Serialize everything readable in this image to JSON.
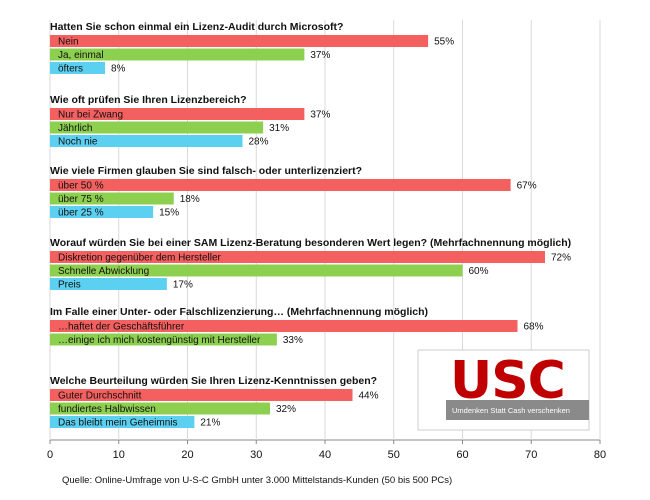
{
  "chart_data": {
    "type": "bar",
    "orientation": "horizontal",
    "xlim": [
      0,
      80
    ],
    "xticks": [
      "0",
      "10",
      "20",
      "30",
      "40",
      "50",
      "60",
      "70",
      "80"
    ],
    "grid": true,
    "colors": {
      "red": "#f45f5f",
      "green": "#8dd050",
      "blue": "#5bd0f0"
    },
    "groups": [
      {
        "question": "Hatten Sie schon einmal ein Lizenz-Audit durch Microsoft?",
        "bars": [
          {
            "label": "Nein",
            "value": 55,
            "pct": "55%",
            "color": "red"
          },
          {
            "label": "Ja, einmal",
            "value": 37,
            "pct": "37%",
            "color": "green"
          },
          {
            "label": "öfters",
            "value": 8,
            "pct": "8%",
            "color": "blue"
          }
        ]
      },
      {
        "question": "Wie oft prüfen Sie Ihren Lizenzbereich?",
        "bars": [
          {
            "label": "Nur bei Zwang",
            "value": 37,
            "pct": "37%",
            "color": "red"
          },
          {
            "label": "Jährlich",
            "value": 31,
            "pct": "31%",
            "color": "green"
          },
          {
            "label": "Noch nie",
            "value": 28,
            "pct": "28%",
            "color": "blue"
          }
        ]
      },
      {
        "question": "Wie viele Firmen glauben Sie sind falsch- oder unterlizenziert?",
        "bars": [
          {
            "label": "über 50 %",
            "value": 67,
            "pct": "67%",
            "color": "red"
          },
          {
            "label": "über 75 %",
            "value": 18,
            "pct": "18%",
            "color": "green"
          },
          {
            "label": "über 25 %",
            "value": 15,
            "pct": "15%",
            "color": "blue"
          }
        ]
      },
      {
        "question": "Worauf würden Sie bei einer SAM Lizenz-Beratung besonderen Wert legen? (Mehrfachnennung möglich)",
        "bars": [
          {
            "label": "Diskretion gegenüber dem Hersteller",
            "value": 72,
            "pct": "72%",
            "color": "red"
          },
          {
            "label": "Schnelle Abwicklung",
            "value": 60,
            "pct": "60%",
            "color": "green"
          },
          {
            "label": "Preis",
            "value": 17,
            "pct": "17%",
            "color": "blue"
          }
        ]
      },
      {
        "question": "Im Falle einer Unter- oder Falschlizenzierung… (Mehrfachnennung möglich)",
        "bars": [
          {
            "label": "…haftet der Geschäftsführer",
            "value": 68,
            "pct": "68%",
            "color": "red"
          },
          {
            "label": "…einige ich mich kostengünstig mit Hersteller",
            "value": 33,
            "pct": "33%",
            "color": "green"
          }
        ]
      },
      {
        "question": "Welche Beurteilung würden Sie Ihren Lizenz-Kenntnissen geben?",
        "bars": [
          {
            "label": "Guter Durchschnitt",
            "value": 44,
            "pct": "44%",
            "color": "red"
          },
          {
            "label": "fundiertes Halbwissen",
            "value": 32,
            "pct": "32%",
            "color": "green"
          },
          {
            "label": "Das bleibt mein Geheimnis",
            "value": 21,
            "pct": "21%",
            "color": "blue"
          }
        ]
      }
    ]
  },
  "logo": {
    "text": "USC",
    "tagline": "Umdenken Statt Cash verschenken"
  },
  "source": "Quelle: Online-Umfrage von U-S-C GmbH  unter 3.000 Mittelstands-Kunden  (50 bis 500 PCs)"
}
